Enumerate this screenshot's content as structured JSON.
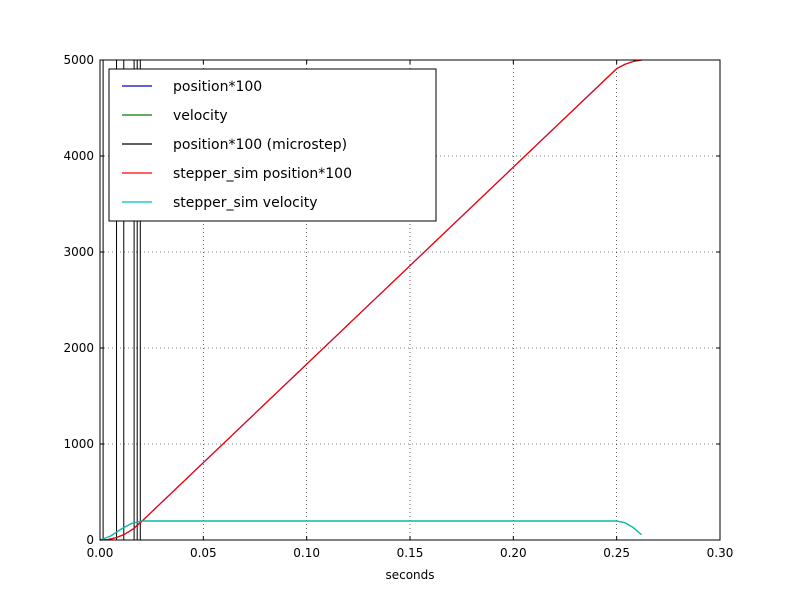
{
  "chart_data": {
    "type": "line",
    "title": "",
    "xlabel": "seconds",
    "ylabel": "",
    "xlim": [
      0,
      0.3
    ],
    "ylim": [
      0,
      5000
    ],
    "xticks": [
      0.0,
      0.05,
      0.1,
      0.15,
      0.2,
      0.25,
      0.3
    ],
    "xtick_labels": [
      "0.00",
      "0.05",
      "0.10",
      "0.15",
      "0.20",
      "0.25",
      "0.30"
    ],
    "yticks": [
      0,
      1000,
      2000,
      3000,
      4000,
      5000
    ],
    "ytick_labels": [
      "0",
      "1000",
      "2000",
      "3000",
      "4000",
      "5000"
    ],
    "grid": true,
    "legend_position": "top-left",
    "series": [
      {
        "name": "position*100",
        "color": "#0000bf",
        "x": [
          0,
          0.004,
          0.008,
          0.012,
          0.016,
          0.02,
          0.25,
          0.254,
          0.258,
          0.262
        ],
        "y": [
          0,
          5,
          25,
          60,
          115,
          190,
          4910,
          4955,
          4985,
          5000
        ]
      },
      {
        "name": "velocity",
        "color": "#008000",
        "x": [
          0,
          0.005,
          0.01,
          0.015,
          0.02,
          0.25,
          0.254,
          0.258,
          0.262
        ],
        "y": [
          0,
          40,
          110,
          170,
          198,
          198,
          180,
          130,
          55
        ]
      },
      {
        "name": "position*100 (microstep)",
        "color": "#000000",
        "vlines": [
          {
            "x": 0.0015,
            "width": 1
          },
          {
            "x": 0.008,
            "width": 1
          },
          {
            "x": 0.0115,
            "width": 1
          },
          {
            "x": 0.0165,
            "width": 1
          },
          {
            "x": 0.018,
            "width": 1
          },
          {
            "x": 0.0195,
            "width": 1
          }
        ]
      },
      {
        "name": "stepper_sim position*100",
        "color": "#ff0000",
        "x": [
          0,
          0.004,
          0.008,
          0.012,
          0.016,
          0.02,
          0.25,
          0.254,
          0.258,
          0.262
        ],
        "y": [
          0,
          5,
          25,
          60,
          115,
          190,
          4910,
          4955,
          4985,
          5000
        ]
      },
      {
        "name": "stepper_sim velocity",
        "color": "#00bfbf",
        "x": [
          0,
          0.005,
          0.01,
          0.015,
          0.02,
          0.25,
          0.254,
          0.258,
          0.262
        ],
        "y": [
          0,
          40,
          110,
          170,
          198,
          198,
          180,
          130,
          55
        ]
      }
    ]
  }
}
